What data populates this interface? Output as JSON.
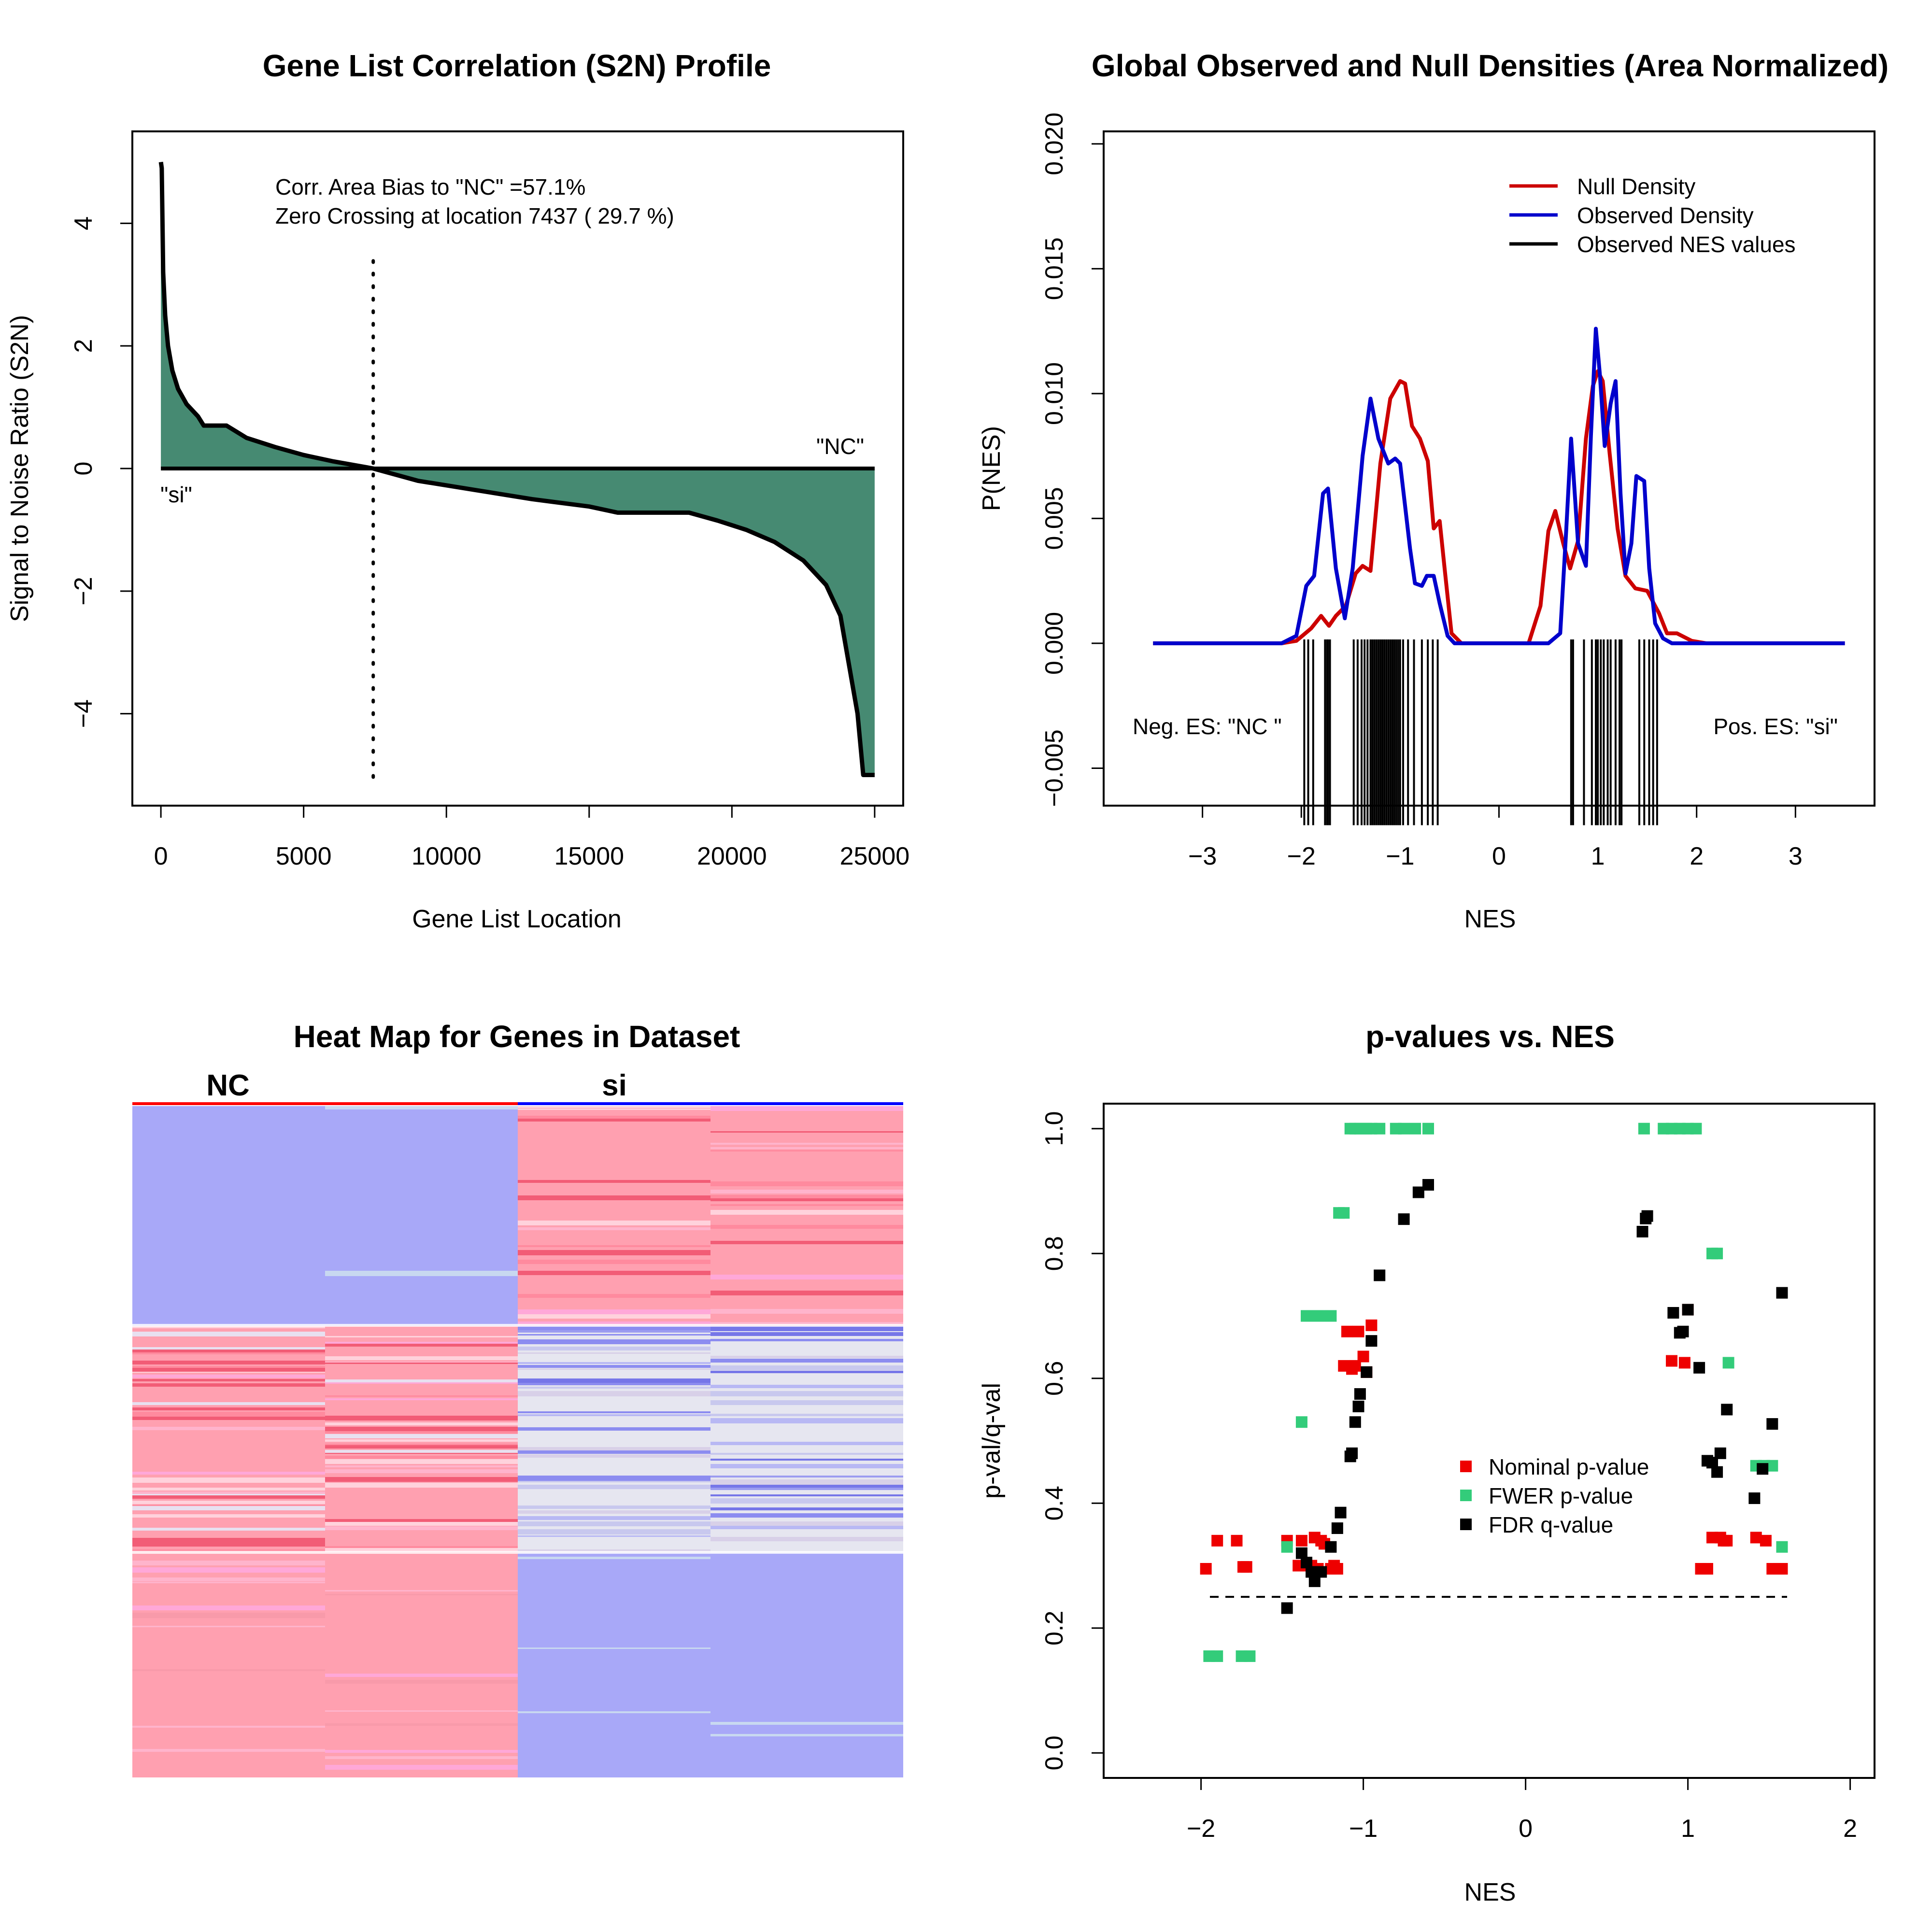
{
  "chart_data": [
    {
      "type": "area",
      "title": "Gene List Correlation (S2N) Profile",
      "xlabel": "Gene List Location",
      "ylabel": "Signal to Noise Ratio (S2N)",
      "xlim": [
        -1000,
        26000
      ],
      "ylim": [
        -5.5,
        5.5
      ],
      "xticks": [
        "0",
        "5000",
        "10000",
        "15000",
        "20000",
        "25000"
      ],
      "yticks": [
        "−4",
        "−2",
        "0",
        "2",
        "4"
      ],
      "fill_color": "#468a72",
      "x": [
        0,
        30,
        80,
        150,
        250,
        400,
        600,
        900,
        1300,
        1500,
        2300,
        3000,
        4000,
        5000,
        6000,
        7437,
        9000,
        11000,
        13000,
        15000,
        16000,
        18500,
        19500,
        20500,
        21500,
        22500,
        23300,
        23800,
        24100,
        24400,
        24500,
        24600,
        24700,
        25000
      ],
      "y": [
        5.0,
        4.9,
        3.2,
        2.5,
        2.0,
        1.6,
        1.3,
        1.05,
        0.85,
        0.7,
        0.7,
        0.5,
        0.35,
        0.22,
        0.12,
        0.0,
        -0.2,
        -0.35,
        -0.5,
        -0.62,
        -0.72,
        -0.72,
        -0.85,
        -1.0,
        -1.2,
        -1.5,
        -1.9,
        -2.4,
        -3.2,
        -4.0,
        -4.5,
        -5.0,
        -5.0,
        -5.0
      ],
      "zero_crossing": 7437,
      "annotations": [
        "Corr. Area Bias to \"NC\" =57.1%",
        "Zero Crossing at location  7437  ( 29.7  %)",
        "\"NC\"",
        "\"si\""
      ]
    },
    {
      "type": "line",
      "title": "Global Observed and Null Densities (Area Normalized)",
      "xlabel": "NES",
      "ylabel": "P(NES)",
      "xlim": [
        -4,
        3.8
      ],
      "ylim": [
        -0.0065,
        0.0205
      ],
      "xticks": [
        "−3",
        "−2",
        "−1",
        "0",
        "1",
        "2",
        "3"
      ],
      "yticks": [
        "−0.005",
        "0.000",
        "0.005",
        "0.010",
        "0.015",
        "0.020"
      ],
      "legend": [
        "Null Density",
        "Observed Density",
        "Observed NES values"
      ],
      "legend_position": "top-right",
      "series": [
        {
          "name": "Null Density",
          "color": "#cc0000",
          "x": [
            -3.5,
            -2.2,
            -2.05,
            -1.9,
            -1.8,
            -1.72,
            -1.65,
            -1.55,
            -1.45,
            -1.38,
            -1.3,
            -1.2,
            -1.1,
            -1.0,
            -0.95,
            -0.88,
            -0.8,
            -0.72,
            -0.66,
            -0.6,
            -0.55,
            -0.48,
            -0.38,
            -0.3,
            0.3,
            0.42,
            0.5,
            0.57,
            0.65,
            0.72,
            0.8,
            0.88,
            0.95,
            1.0,
            1.05,
            1.12,
            1.2,
            1.28,
            1.38,
            1.5,
            1.62,
            1.7,
            1.8,
            1.95,
            2.1,
            3.5
          ],
          "y": [
            0,
            0,
            0.0001,
            0.0006,
            0.0011,
            0.0007,
            0.0011,
            0.0015,
            0.0028,
            0.0031,
            0.0029,
            0.0072,
            0.0098,
            0.0105,
            0.0104,
            0.0087,
            0.0082,
            0.0073,
            0.0046,
            0.0049,
            0.003,
            0.0004,
            0.0,
            0.0,
            0.0,
            0.0015,
            0.0045,
            0.0053,
            0.004,
            0.003,
            0.0041,
            0.0082,
            0.0103,
            0.0109,
            0.0105,
            0.0076,
            0.0046,
            0.0027,
            0.0022,
            0.0021,
            0.0012,
            0.0004,
            0.0004,
            0.0001,
            0,
            0
          ]
        },
        {
          "name": "Observed Density",
          "color": "#0000cc",
          "x": [
            -3.5,
            -2.2,
            -2.05,
            -1.95,
            -1.87,
            -1.78,
            -1.73,
            -1.65,
            -1.56,
            -1.48,
            -1.38,
            -1.3,
            -1.22,
            -1.12,
            -1.05,
            -1.0,
            -0.95,
            -0.9,
            -0.85,
            -0.78,
            -0.73,
            -0.66,
            -0.6,
            -0.52,
            -0.45,
            -0.3,
            0.5,
            0.62,
            0.68,
            0.73,
            0.8,
            0.88,
            0.93,
            0.98,
            1.02,
            1.07,
            1.13,
            1.18,
            1.23,
            1.28,
            1.34,
            1.39,
            1.47,
            1.52,
            1.58,
            1.66,
            1.75,
            1.9,
            3.5
          ],
          "y": [
            0,
            0,
            0.0003,
            0.0023,
            0.0027,
            0.006,
            0.0062,
            0.003,
            0.001,
            0.003,
            0.0075,
            0.0098,
            0.0082,
            0.0072,
            0.0074,
            0.0072,
            0.0055,
            0.0038,
            0.0024,
            0.0023,
            0.0027,
            0.0027,
            0.0016,
            0.0003,
            0,
            0,
            0,
            0.0004,
            0.0045,
            0.0082,
            0.004,
            0.0031,
            0.0083,
            0.0126,
            0.0108,
            0.0079,
            0.0096,
            0.0105,
            0.006,
            0.0028,
            0.004,
            0.0067,
            0.0065,
            0.003,
            0.0008,
            0.0002,
            0,
            0,
            0
          ]
        }
      ],
      "observed_nes": [
        -1.97,
        -1.93,
        -1.88,
        -1.76,
        -1.74,
        -1.73,
        -1.71,
        -1.47,
        -1.43,
        -1.39,
        -1.36,
        -1.33,
        -1.3,
        -1.28,
        -1.26,
        -1.24,
        -1.22,
        -1.2,
        -1.18,
        -1.16,
        -1.14,
        -1.12,
        -1.1,
        -1.08,
        -1.06,
        -1.04,
        -1.02,
        -1.0,
        -0.97,
        -0.92,
        -0.86,
        -0.78,
        -0.72,
        -0.67,
        -0.62,
        0.73,
        0.75,
        0.86,
        0.94,
        0.98,
        1.0,
        1.03,
        1.06,
        1.1,
        1.13,
        1.18,
        1.22,
        1.24,
        1.42,
        1.47,
        1.52,
        1.56,
        1.6
      ],
      "annotations": [
        "Neg. ES: \"NC \"",
        "Pos. ES: \"si\""
      ]
    },
    {
      "type": "heatmap",
      "title": "Heat Map for Genes in Dataset",
      "columns": [
        "NC",
        "si"
      ],
      "phenotype_colors": [
        "#ff0000",
        "#0000ff"
      ],
      "color_scale": [
        "#a8a8f8",
        "#ffa0b0"
      ]
    },
    {
      "type": "scatter",
      "title": "p-values vs. NES",
      "xlabel": "NES",
      "ylabel": "p-val/q-val",
      "xlim": [
        -2.6,
        2.15
      ],
      "ylim": [
        -0.04,
        1.04
      ],
      "xticks": [
        "−2",
        "−1",
        "0",
        "1",
        "2"
      ],
      "yticks": [
        "0.0",
        "0.2",
        "0.4",
        "0.6",
        "0.8",
        "1.0"
      ],
      "threshold": 0.25,
      "legend": [
        "Nominal p-value",
        "FWER p-value",
        "FDR q-value"
      ],
      "legend_position": "center-right",
      "series": [
        {
          "name": "Nominal p-value",
          "color": "#ee0000",
          "x": [
            -1.97,
            -1.9,
            -1.78,
            -1.74,
            -1.72,
            -1.47,
            -1.4,
            -1.38,
            -1.35,
            -1.32,
            -1.3,
            -1.28,
            -1.26,
            -1.24,
            -1.2,
            -1.18,
            -1.16,
            -1.12,
            -1.1,
            -1.07,
            -1.05,
            -1.03,
            -1.0,
            -0.98,
            -0.95,
            0.9,
            0.98,
            1.0,
            1.08,
            1.12,
            1.15,
            1.2,
            1.22,
            1.24,
            1.42,
            1.48,
            1.52,
            1.56,
            1.58
          ],
          "y": [
            0.295,
            0.34,
            0.34,
            0.298,
            0.298,
            0.34,
            0.3,
            0.34,
            0.3,
            0.3,
            0.345,
            0.295,
            0.34,
            0.335,
            0.295,
            0.3,
            0.295,
            0.62,
            0.675,
            0.615,
            0.62,
            0.675,
            0.635,
            0.61,
            0.685,
            0.628,
            0.625,
            0.71,
            0.295,
            0.295,
            0.345,
            0.345,
            0.34,
            0.34,
            0.345,
            0.34,
            0.295,
            0.295,
            0.295
          ]
        },
        {
          "name": "FWER p-value",
          "color": "#33cc7a",
          "x": [
            -1.95,
            -1.9,
            -1.75,
            -1.7,
            -1.47,
            -1.38,
            -1.35,
            -1.32,
            -1.28,
            -1.25,
            -1.2,
            -1.15,
            -1.12,
            -1.08,
            -1.05,
            -1.02,
            -0.98,
            -0.95,
            -0.9,
            -0.8,
            -0.75,
            -0.68,
            -0.6,
            0.73,
            0.85,
            0.9,
            0.95,
            1.0,
            1.05,
            1.15,
            1.18,
            1.25,
            1.42,
            1.47,
            1.52,
            1.58
          ],
          "y": [
            0.155,
            0.155,
            0.155,
            0.155,
            0.33,
            0.53,
            0.7,
            0.7,
            0.7,
            0.7,
            0.7,
            0.865,
            0.865,
            1.0,
            1.0,
            1.0,
            1.0,
            1.0,
            1.0,
            1.0,
            1.0,
            1.0,
            1.0,
            1.0,
            1.0,
            1.0,
            1.0,
            1.0,
            1.0,
            0.8,
            0.8,
            0.625,
            0.46,
            0.46,
            0.46,
            0.33
          ]
        },
        {
          "name": "FDR q-value",
          "color": "#000000",
          "x": [
            -1.47,
            -1.38,
            -1.35,
            -1.32,
            -1.3,
            -1.26,
            -1.2,
            -1.16,
            -1.14,
            -1.08,
            -1.07,
            -1.05,
            -1.03,
            -1.02,
            -0.98,
            -0.95,
            -0.9,
            -0.75,
            -0.66,
            -0.6,
            0.72,
            0.74,
            0.75,
            0.91,
            0.95,
            0.97,
            1.0,
            1.07,
            1.12,
            1.15,
            1.18,
            1.2,
            1.24,
            1.41,
            1.46,
            1.52,
            1.58
          ],
          "y": [
            0.232,
            0.32,
            0.305,
            0.29,
            0.275,
            0.29,
            0.33,
            0.36,
            0.385,
            0.475,
            0.48,
            0.53,
            0.555,
            0.575,
            0.61,
            0.66,
            0.765,
            0.855,
            0.898,
            0.91,
            0.835,
            0.856,
            0.86,
            0.705,
            0.673,
            0.675,
            0.71,
            0.617,
            0.468,
            0.465,
            0.45,
            0.48,
            0.55,
            0.408,
            0.455,
            0.527,
            0.737
          ]
        }
      ]
    }
  ]
}
